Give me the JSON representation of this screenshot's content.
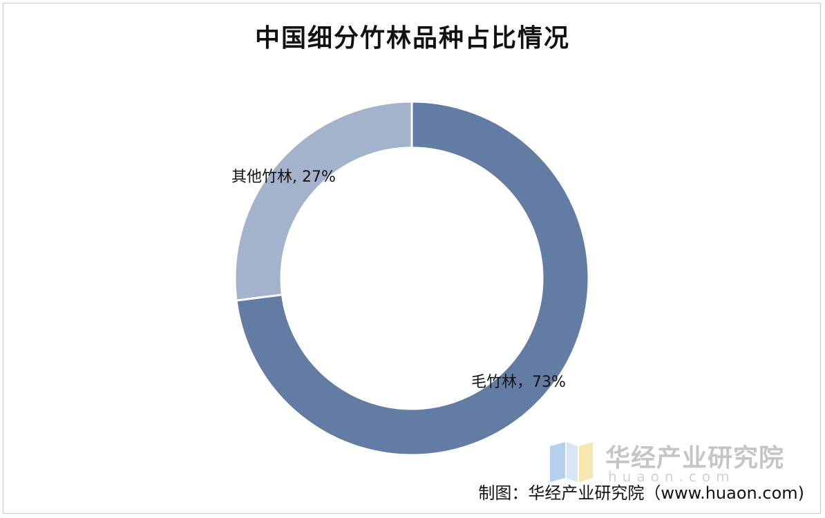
{
  "chart_data": {
    "type": "pie",
    "title": "中国细分竹林品种占比情况",
    "slices": [
      {
        "name": "毛竹林",
        "value": 73,
        "label": "毛竹林，73%",
        "color": "#637ca3"
      },
      {
        "name": "其他竹林",
        "value": 27,
        "label": "其他竹林, 27%",
        "color": "#a3b3cc"
      }
    ],
    "donut": true,
    "legend": "none"
  },
  "watermark": {
    "name": "华经产业研究院",
    "url": "huaon.com"
  },
  "source": "制图：华经产业研究院（www.huaon.com)"
}
